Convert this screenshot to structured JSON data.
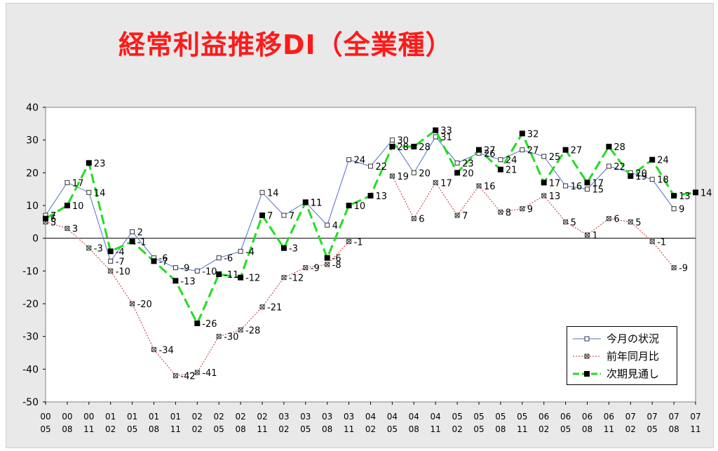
{
  "chart_data": {
    "type": "line",
    "title": "経常利益推移DI（全業種）",
    "categories": [
      [
        "00",
        "05"
      ],
      [
        "00",
        "08"
      ],
      [
        "00",
        "11"
      ],
      [
        "01",
        "02"
      ],
      [
        "01",
        "05"
      ],
      [
        "01",
        "08"
      ],
      [
        "01",
        "11"
      ],
      [
        "02",
        "02"
      ],
      [
        "02",
        "05"
      ],
      [
        "02",
        "08"
      ],
      [
        "02",
        "11"
      ],
      [
        "03",
        "02"
      ],
      [
        "03",
        "05"
      ],
      [
        "03",
        "08"
      ],
      [
        "03",
        "11"
      ],
      [
        "04",
        "02"
      ],
      [
        "04",
        "05"
      ],
      [
        "04",
        "08"
      ],
      [
        "04",
        "11"
      ],
      [
        "05",
        "02"
      ],
      [
        "05",
        "05"
      ],
      [
        "05",
        "08"
      ],
      [
        "05",
        "11"
      ],
      [
        "06",
        "02"
      ],
      [
        "06",
        "05"
      ],
      [
        "06",
        "08"
      ],
      [
        "06",
        "11"
      ],
      [
        "07",
        "02"
      ],
      [
        "07",
        "05"
      ],
      [
        "07",
        "08"
      ],
      [
        "07",
        "11"
      ]
    ],
    "ylim": [
      -50,
      40
    ],
    "yticks": [
      40,
      30,
      20,
      10,
      0,
      -10,
      -20,
      -30,
      -40,
      -50
    ],
    "grid": false,
    "legend_position": "bottom-right",
    "series": [
      {
        "name": "今月の状況",
        "color": "#4f6fc4",
        "style": "solid-hollow-square",
        "values": [
          7,
          17,
          14,
          -7,
          2,
          -6,
          -9,
          -10,
          -6,
          -4,
          14,
          7,
          11,
          4,
          24,
          22,
          30,
          20,
          31,
          23,
          26,
          24,
          27,
          25,
          16,
          15,
          22,
          20,
          18,
          9,
          null
        ]
      },
      {
        "name": "前年同月比",
        "color": "#c0302a",
        "style": "dotted-x-square",
        "values": [
          5,
          3,
          -3,
          -10,
          -20,
          -34,
          -42,
          -41,
          -30,
          -28,
          -21,
          -12,
          -9,
          -8,
          -1,
          null,
          19,
          6,
          17,
          7,
          16,
          8,
          9,
          13,
          5,
          1,
          6,
          5,
          -1,
          -9,
          null
        ]
      },
      {
        "name": "次期見通し",
        "color": "#22dd22",
        "style": "dashed-filled-square",
        "values": [
          6,
          10,
          23,
          -4,
          -1,
          -7,
          -13,
          -26,
          -11,
          -12,
          7,
          -3,
          11,
          -6,
          10,
          13,
          28,
          28,
          33,
          20,
          27,
          21,
          32,
          17,
          27,
          17,
          28,
          19,
          24,
          13,
          14
        ]
      }
    ]
  }
}
